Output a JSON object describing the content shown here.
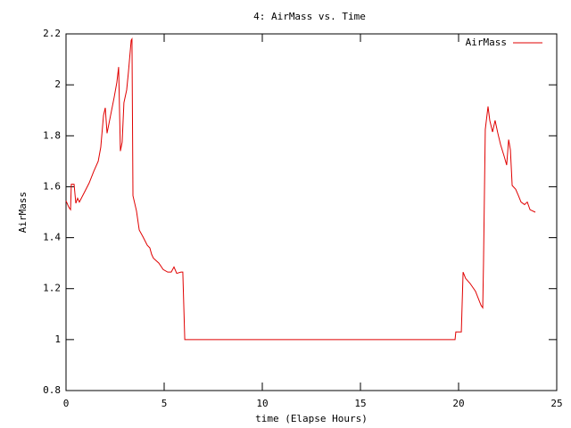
{
  "chart_data": {
    "type": "line",
    "title": "4: AirMass vs. Time",
    "xlabel": "time (Elapse Hours)",
    "ylabel": "AirMass",
    "xlim": [
      0,
      25
    ],
    "xticks": [
      0,
      5,
      10,
      15,
      20,
      25
    ],
    "ylim": [
      0.8,
      2.2
    ],
    "yticks": [
      0.8,
      1,
      1.2,
      1.4,
      1.6,
      1.8,
      2,
      2.2
    ],
    "grid": false,
    "legend": "top-right",
    "series": [
      {
        "name": "AirMass",
        "color": "#e00000",
        "x": [
          0,
          0.14,
          0.23,
          0.27,
          0.41,
          0.5,
          0.59,
          0.68,
          0.95,
          1.18,
          1.41,
          1.64,
          1.77,
          1.91,
          2.0,
          2.09,
          2.27,
          2.45,
          2.59,
          2.68,
          2.77,
          2.86,
          2.95,
          3.09,
          3.18,
          3.32,
          3.36,
          3.41,
          3.59,
          3.73,
          3.91,
          4.14,
          4.27,
          4.36,
          4.45,
          4.73,
          4.95,
          5.18,
          5.36,
          5.5,
          5.64,
          5.86,
          5.95,
          6.05,
          19.82,
          19.86,
          20.14,
          20.23,
          20.36,
          20.59,
          20.86,
          21.14,
          21.23,
          21.27,
          21.36,
          21.5,
          21.59,
          21.73,
          21.86,
          22.0,
          22.14,
          22.32,
          22.45,
          22.55,
          22.64,
          22.73,
          22.91,
          23.05,
          23.18,
          23.36,
          23.5,
          23.64,
          23.91
        ],
        "values": [
          1.545,
          1.52,
          1.51,
          1.61,
          1.61,
          1.535,
          1.555,
          1.54,
          1.58,
          1.615,
          1.66,
          1.7,
          1.755,
          1.88,
          1.91,
          1.81,
          1.88,
          1.95,
          2.01,
          2.07,
          1.74,
          1.775,
          1.93,
          1.98,
          2.05,
          2.175,
          2.18,
          1.565,
          1.505,
          1.43,
          1.405,
          1.37,
          1.36,
          1.335,
          1.32,
          1.3,
          1.275,
          1.265,
          1.265,
          1.285,
          1.26,
          1.265,
          1.265,
          1.0,
          1.0,
          1.03,
          1.03,
          1.265,
          1.24,
          1.22,
          1.19,
          1.135,
          1.125,
          1.3,
          1.825,
          1.915,
          1.86,
          1.815,
          1.86,
          1.81,
          1.765,
          1.72,
          1.685,
          1.785,
          1.745,
          1.605,
          1.59,
          1.565,
          1.54,
          1.53,
          1.54,
          1.51,
          1.5
        ]
      }
    ]
  }
}
